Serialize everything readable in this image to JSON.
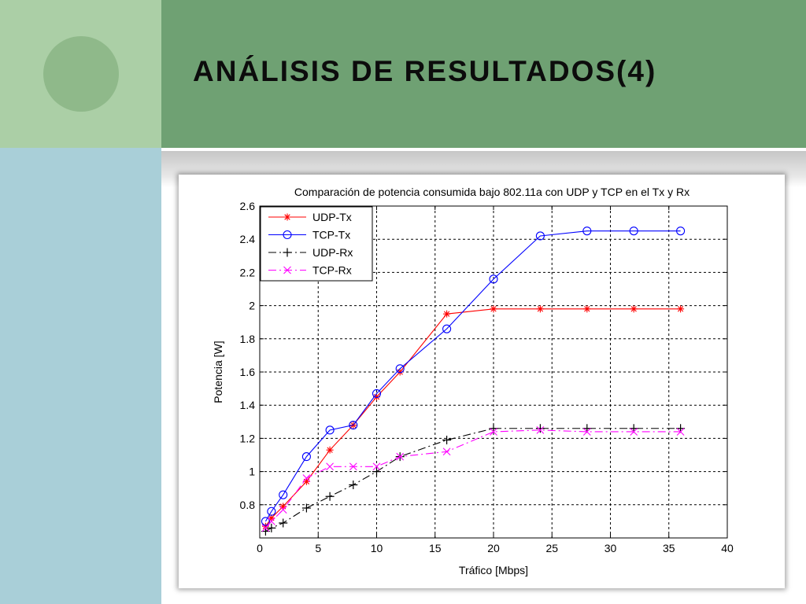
{
  "slide": {
    "title": "ANÁLISIS DE RESULTADOS(4)"
  },
  "chart_data": {
    "type": "line",
    "title": "Comparación de potencia consumida bajo 802.11a con UDP y TCP en el Tx y Rx",
    "xlabel": "Tráfico [Mbps]",
    "ylabel": "Potencia [W]",
    "xlim": [
      0,
      40
    ],
    "ylim": [
      0.6,
      2.6
    ],
    "xticks": [
      0,
      5,
      10,
      15,
      20,
      25,
      30,
      35,
      40
    ],
    "yticks": [
      0.8,
      1,
      1.2,
      1.4,
      1.6,
      1.8,
      2,
      2.2,
      2.4,
      2.6
    ],
    "grid": true,
    "legend_position": "top-left",
    "series": [
      {
        "name": "UDP-Tx",
        "color": "#ff0000",
        "marker": "asterisk",
        "linestyle": "solid",
        "x": [
          0.5,
          1,
          2,
          4,
          6,
          8,
          10,
          12,
          16,
          20,
          24,
          28,
          32,
          36
        ],
        "y": [
          0.67,
          0.72,
          0.79,
          0.94,
          1.13,
          1.28,
          1.45,
          1.6,
          1.95,
          1.98,
          1.98,
          1.98,
          1.98,
          1.98
        ]
      },
      {
        "name": "TCP-Tx",
        "color": "#0000ff",
        "marker": "circle",
        "linestyle": "solid",
        "x": [
          0.5,
          1,
          2,
          4,
          6,
          8,
          10,
          12,
          16,
          20,
          24,
          28,
          32,
          36
        ],
        "y": [
          0.7,
          0.76,
          0.86,
          1.09,
          1.25,
          1.28,
          1.47,
          1.62,
          1.86,
          2.16,
          2.42,
          2.45,
          2.45,
          2.45
        ]
      },
      {
        "name": "UDP-Rx",
        "color": "#000000",
        "marker": "plus",
        "linestyle": "dashdot",
        "x": [
          0.5,
          1,
          2,
          4,
          6,
          8,
          10,
          12,
          16,
          20,
          24,
          28,
          32,
          36
        ],
        "y": [
          0.64,
          0.66,
          0.69,
          0.78,
          0.85,
          0.92,
          1.0,
          1.09,
          1.19,
          1.26,
          1.26,
          1.26,
          1.26,
          1.26
        ]
      },
      {
        "name": "TCP-Rx",
        "color": "#ff00ff",
        "marker": "x",
        "linestyle": "dashdot",
        "x": [
          0.5,
          1,
          2,
          4,
          6,
          8,
          10,
          12,
          16,
          20,
          24,
          28,
          32,
          36
        ],
        "y": [
          0.66,
          0.7,
          0.77,
          0.96,
          1.03,
          1.03,
          1.03,
          1.09,
          1.12,
          1.24,
          1.25,
          1.24,
          1.24,
          1.24
        ]
      }
    ]
  }
}
